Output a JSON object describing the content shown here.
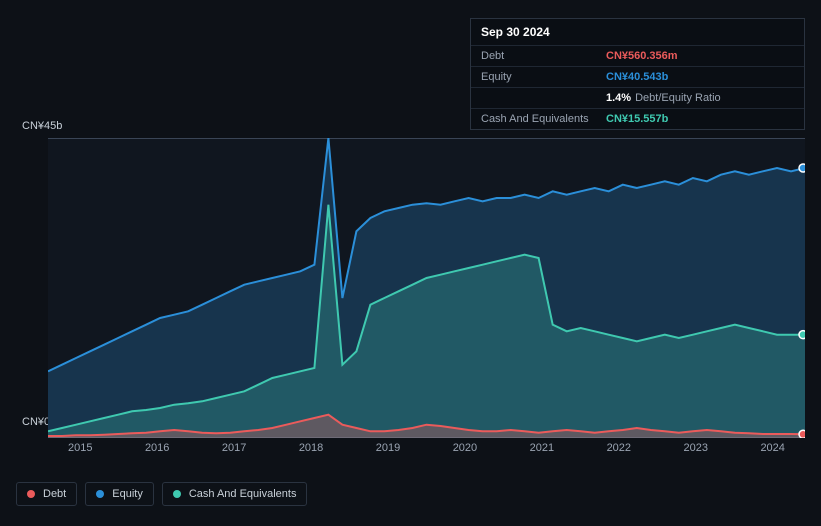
{
  "tooltip": {
    "date": "Sep 30 2024",
    "rows": [
      {
        "label": "Debt",
        "value": "CN¥560.356m",
        "color": "#eb5b5b"
      },
      {
        "label": "Equity",
        "value": "CN¥40.543b",
        "color": "#2b8fd9"
      },
      {
        "label": "",
        "value": "1.4%",
        "extra": "Debt/Equity Ratio",
        "color": "#ffffff"
      },
      {
        "label": "Cash And Equivalents",
        "value": "CN¥15.557b",
        "color": "#3fc9b0"
      }
    ]
  },
  "chart": {
    "type": "area",
    "background": "#0d1117",
    "plot_background": "#10161f",
    "grid_color": "#1a2330",
    "y_max_label": "CN¥45b",
    "y_min_label": "CN¥0",
    "y_max": 45,
    "y_min": 0,
    "x_labels": [
      "2015",
      "2016",
      "2017",
      "2018",
      "2019",
      "2020",
      "2021",
      "2022",
      "2023",
      "2024"
    ],
    "series": [
      {
        "name": "Equity",
        "color": "#2b8fd9",
        "fill_opacity": 0.25,
        "line_width": 2,
        "data": [
          10,
          11,
          12,
          13,
          14,
          15,
          16,
          17,
          18,
          18.5,
          19,
          20,
          21,
          22,
          23,
          23.5,
          24,
          24.5,
          25,
          26,
          45,
          21,
          31,
          33,
          34,
          34.5,
          35,
          35.2,
          35,
          35.5,
          36,
          35.5,
          36,
          36,
          36.5,
          36,
          37,
          36.5,
          37,
          37.5,
          37,
          38,
          37.5,
          38,
          38.5,
          38,
          39,
          38.5,
          39.5,
          40,
          39.5,
          40,
          40.5,
          40,
          40.5
        ]
      },
      {
        "name": "Cash And Equivalents",
        "color": "#3fc9b0",
        "fill_opacity": 0.25,
        "line_width": 2,
        "data": [
          1,
          1.5,
          2,
          2.5,
          3,
          3.5,
          4,
          4.2,
          4.5,
          5,
          5.2,
          5.5,
          6,
          6.5,
          7,
          8,
          9,
          9.5,
          10,
          10.5,
          35,
          11,
          13,
          20,
          21,
          22,
          23,
          24,
          24.5,
          25,
          25.5,
          26,
          26.5,
          27,
          27.5,
          27,
          17,
          16,
          16.5,
          16,
          15.5,
          15,
          14.5,
          15,
          15.5,
          15,
          15.5,
          16,
          16.5,
          17,
          16.5,
          16,
          15.5,
          15.5,
          15.5
        ]
      },
      {
        "name": "Debt",
        "color": "#eb5b5b",
        "fill_opacity": 0.3,
        "line_width": 2,
        "data": [
          0.3,
          0.3,
          0.4,
          0.4,
          0.5,
          0.6,
          0.7,
          0.8,
          1,
          1.2,
          1,
          0.8,
          0.7,
          0.8,
          1,
          1.2,
          1.5,
          2,
          2.5,
          3,
          3.5,
          2,
          1.5,
          1,
          1,
          1.2,
          1.5,
          2,
          1.8,
          1.5,
          1.2,
          1,
          1,
          1.2,
          1,
          0.8,
          1,
          1.2,
          1,
          0.8,
          1,
          1.2,
          1.5,
          1.2,
          1,
          0.8,
          1,
          1.2,
          1,
          0.8,
          0.7,
          0.6,
          0.6,
          0.6,
          0.56
        ]
      }
    ]
  },
  "legend": {
    "items": [
      {
        "label": "Debt",
        "color": "#eb5b5b"
      },
      {
        "label": "Equity",
        "color": "#2b8fd9"
      },
      {
        "label": "Cash And Equivalents",
        "color": "#3fc9b0"
      }
    ]
  }
}
